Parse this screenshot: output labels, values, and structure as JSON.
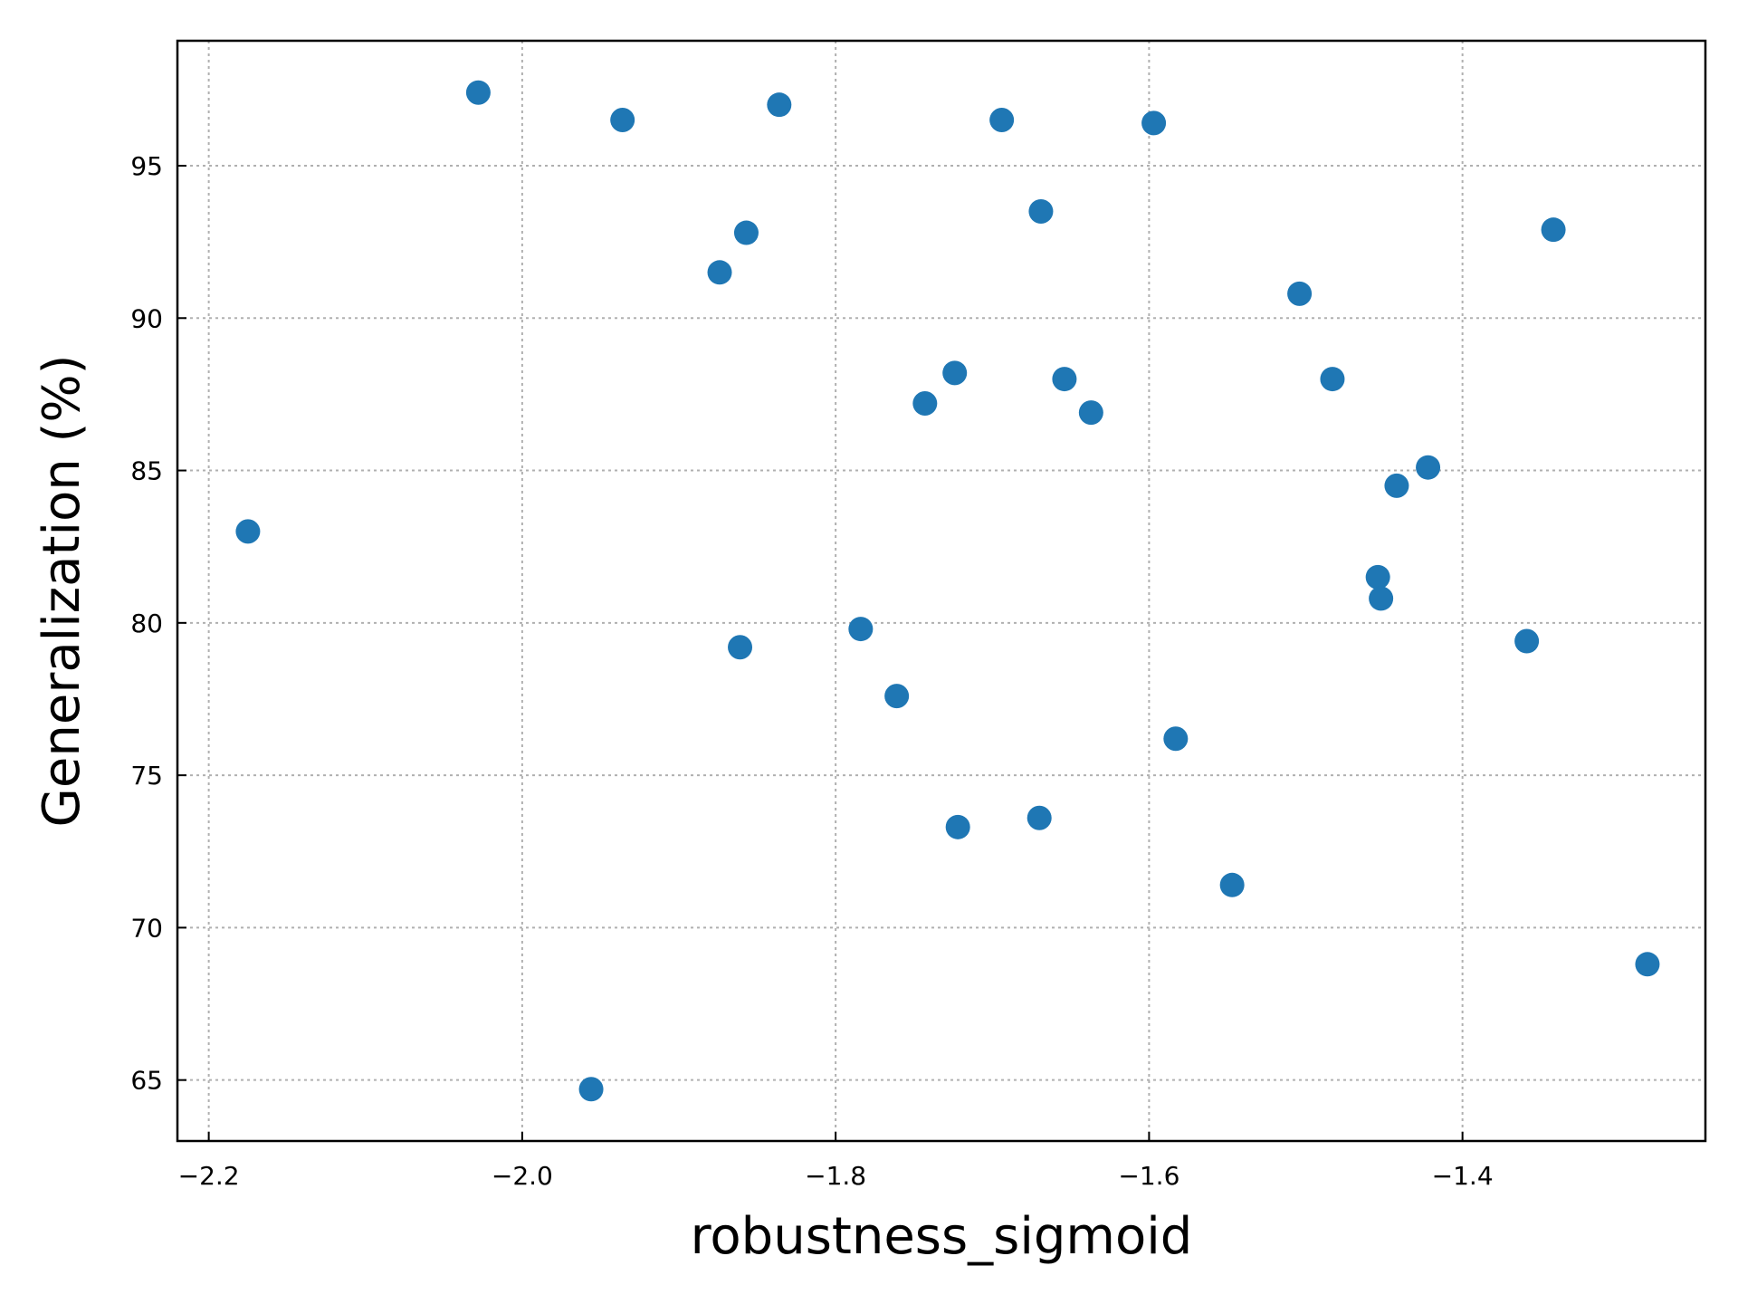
{
  "chart_data": {
    "type": "scatter",
    "xlabel": "robustness_sigmoid",
    "ylabel": "Generalization (%)",
    "xlim": [
      -2.22,
      -1.245
    ],
    "ylim": [
      63.0,
      99.1
    ],
    "x_ticks": [
      -2.2,
      -2.0,
      -1.8,
      -1.6,
      -1.4
    ],
    "x_tick_labels": [
      "−2.2",
      "−2.0",
      "−1.8",
      "−1.6",
      "−1.4"
    ],
    "y_ticks": [
      65,
      70,
      75,
      80,
      85,
      90,
      95
    ],
    "y_tick_labels": [
      "65",
      "70",
      "75",
      "80",
      "85",
      "90",
      "95"
    ],
    "grid": true,
    "marker_color": "#1f77b4",
    "points": [
      {
        "x": -2.175,
        "y": 83.0
      },
      {
        "x": -2.028,
        "y": 97.4
      },
      {
        "x": -1.936,
        "y": 96.5
      },
      {
        "x": -1.956,
        "y": 64.7
      },
      {
        "x": -1.836,
        "y": 97.0
      },
      {
        "x": -1.857,
        "y": 92.8
      },
      {
        "x": -1.874,
        "y": 91.5
      },
      {
        "x": -1.861,
        "y": 79.2
      },
      {
        "x": -1.694,
        "y": 96.5
      },
      {
        "x": -1.669,
        "y": 93.5
      },
      {
        "x": -1.597,
        "y": 96.4
      },
      {
        "x": -1.784,
        "y": 79.8
      },
      {
        "x": -1.761,
        "y": 77.6
      },
      {
        "x": -1.743,
        "y": 87.2
      },
      {
        "x": -1.724,
        "y": 88.2
      },
      {
        "x": -1.722,
        "y": 73.3
      },
      {
        "x": -1.67,
        "y": 73.6
      },
      {
        "x": -1.654,
        "y": 88.0
      },
      {
        "x": -1.637,
        "y": 86.9
      },
      {
        "x": -1.583,
        "y": 76.2
      },
      {
        "x": -1.547,
        "y": 71.4
      },
      {
        "x": -1.504,
        "y": 90.8
      },
      {
        "x": -1.483,
        "y": 88.0
      },
      {
        "x": -1.454,
        "y": 81.5
      },
      {
        "x": -1.452,
        "y": 80.8
      },
      {
        "x": -1.442,
        "y": 84.5
      },
      {
        "x": -1.422,
        "y": 85.1
      },
      {
        "x": -1.359,
        "y": 79.4
      },
      {
        "x": -1.342,
        "y": 92.9
      },
      {
        "x": -1.282,
        "y": 68.8
      }
    ]
  }
}
